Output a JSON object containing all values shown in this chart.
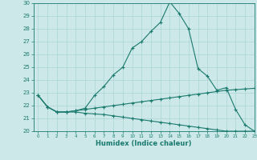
{
  "title": "",
  "xlabel": "Humidex (Indice chaleur)",
  "bg_color": "#cce8e8",
  "line_color": "#1a7a6e",
  "grid_color": "#aad4d4",
  "x_values": [
    0,
    1,
    2,
    3,
    4,
    5,
    6,
    7,
    8,
    9,
    10,
    11,
    12,
    13,
    14,
    15,
    16,
    17,
    18,
    19,
    20,
    21,
    22,
    23
  ],
  "line1": [
    22.8,
    21.9,
    21.5,
    21.5,
    21.6,
    21.8,
    22.8,
    23.5,
    24.4,
    25.0,
    26.5,
    27.0,
    27.8,
    28.5,
    30.1,
    29.2,
    28.0,
    24.9,
    24.3,
    23.2,
    23.4,
    21.7,
    20.5,
    20.0
  ],
  "line2": [
    22.8,
    21.9,
    21.5,
    21.5,
    21.6,
    21.7,
    21.8,
    21.9,
    22.0,
    22.1,
    22.2,
    22.3,
    22.4,
    22.5,
    22.6,
    22.7,
    22.8,
    22.9,
    23.0,
    23.1,
    23.2,
    23.25,
    23.3,
    23.35
  ],
  "line3": [
    22.8,
    21.9,
    21.5,
    21.5,
    21.5,
    21.4,
    21.35,
    21.3,
    21.2,
    21.1,
    21.0,
    20.9,
    20.8,
    20.7,
    20.6,
    20.5,
    20.4,
    20.3,
    20.2,
    20.1,
    20.0,
    20.0,
    20.0,
    20.0
  ],
  "ylim": [
    20,
    30
  ],
  "xlim": [
    -0.5,
    23
  ],
  "yticks": [
    20,
    21,
    22,
    23,
    24,
    25,
    26,
    27,
    28,
    29,
    30
  ],
  "xticks": [
    0,
    1,
    2,
    3,
    4,
    5,
    6,
    7,
    8,
    9,
    10,
    11,
    12,
    13,
    14,
    15,
    16,
    17,
    18,
    19,
    20,
    21,
    22,
    23
  ],
  "tick_fontsize": 5.0,
  "xlabel_fontsize": 6.0
}
